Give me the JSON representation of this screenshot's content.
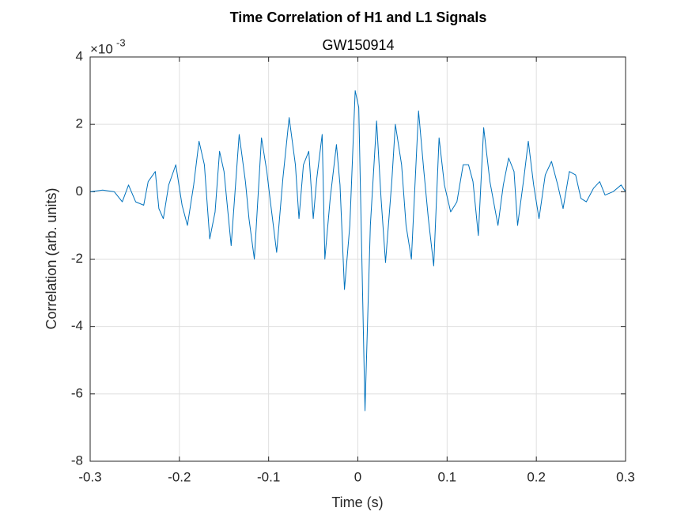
{
  "chart_data": {
    "type": "line",
    "title": "Time Correlation of H1 and L1 Signals",
    "subtitle": "GW150914",
    "x_label": "Time (s)",
    "y_label": "Correlation (arb. units)",
    "y_multiplier": "×10",
    "y_exponent": "-3",
    "x": [
      -0.3,
      -0.286,
      -0.273,
      -0.264,
      -0.257,
      -0.249,
      -0.24,
      -0.235,
      -0.227,
      -0.223,
      -0.218,
      -0.212,
      -0.204,
      -0.197,
      -0.191,
      -0.184,
      -0.178,
      -0.172,
      -0.166,
      -0.16,
      -0.155,
      -0.15,
      -0.142,
      -0.133,
      -0.126,
      -0.122,
      -0.116,
      -0.108,
      -0.102,
      -0.098,
      -0.091,
      -0.084,
      -0.077,
      -0.07,
      -0.066,
      -0.061,
      -0.055,
      -0.05,
      -0.046,
      -0.04,
      -0.037,
      -0.031,
      -0.024,
      -0.02,
      -0.015,
      -0.009,
      -0.003,
      0.001,
      0.008,
      0.014,
      0.021,
      0.026,
      0.031,
      0.038,
      0.042,
      0.049,
      0.054,
      0.06,
      0.068,
      0.074,
      0.079,
      0.085,
      0.091,
      0.097,
      0.104,
      0.111,
      0.118,
      0.124,
      0.129,
      0.135,
      0.141,
      0.148,
      0.157,
      0.163,
      0.169,
      0.175,
      0.179,
      0.186,
      0.191,
      0.197,
      0.203,
      0.21,
      0.217,
      0.224,
      0.23,
      0.237,
      0.244,
      0.25,
      0.256,
      0.264,
      0.271,
      0.277,
      0.286,
      0.295,
      0.3
    ],
    "series": [
      {
        "color": "#0072bd",
        "values": [
          0,
          0.05,
          0,
          -0.3,
          0.2,
          -0.3,
          -0.4,
          0.3,
          0.6,
          -0.5,
          -0.8,
          0.2,
          0.8,
          -0.4,
          -1.0,
          0.2,
          1.5,
          0.8,
          -1.4,
          -0.6,
          1.2,
          0.6,
          -1.6,
          1.7,
          0.3,
          -0.8,
          -2.0,
          1.6,
          0.6,
          -0.3,
          -1.8,
          0.4,
          2.2,
          0.8,
          -0.8,
          0.8,
          1.2,
          -0.8,
          0.4,
          1.7,
          -2.0,
          -0.2,
          1.4,
          0.2,
          -2.9,
          -1.0,
          3.0,
          2.5,
          -6.5,
          -1.0,
          2.1,
          -0.2,
          -2.1,
          0.3,
          2.0,
          0.8,
          -1.0,
          -2.0,
          2.4,
          0.6,
          -0.8,
          -2.2,
          1.6,
          0.2,
          -0.6,
          -0.3,
          0.8,
          0.8,
          0.3,
          -1.3,
          1.9,
          0.3,
          -1.0,
          0.2,
          1.0,
          0.6,
          -1.0,
          0.4,
          1.5,
          0.2,
          -0.8,
          0.5,
          0.9,
          0.2,
          -0.5,
          0.6,
          0.5,
          -0.2,
          -0.3,
          0.1,
          0.3,
          -0.1,
          0,
          0.2,
          0
        ]
      }
    ],
    "xlim": [
      -0.3,
      0.3
    ],
    "xticks": [
      -0.3,
      -0.2,
      -0.1,
      0,
      0.1,
      0.2,
      0.3
    ],
    "ylim": [
      -8,
      4
    ],
    "yticks": [
      -8,
      -6,
      -4,
      -2,
      0,
      2,
      4
    ],
    "grid": true
  }
}
